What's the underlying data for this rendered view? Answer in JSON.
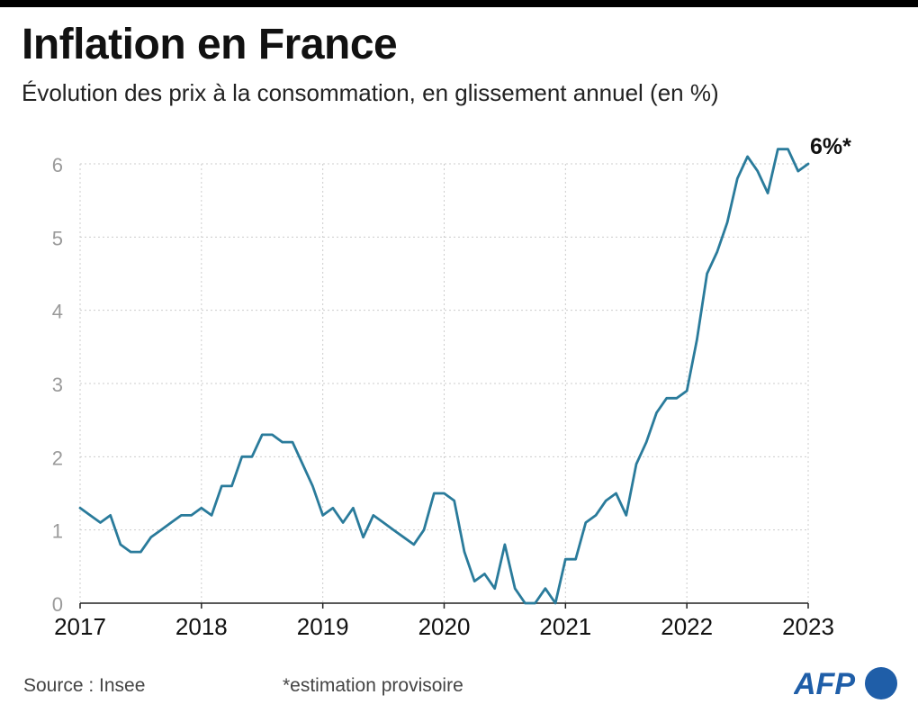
{
  "header": {
    "title": "Inflation en France",
    "subtitle": "Évolution des prix à la consommation, en glissement annuel (en %)"
  },
  "footer": {
    "source": "Source : Insee",
    "note": "*estimation provisoire",
    "logo_text": "AFP"
  },
  "colors": {
    "line": "#2a7b9b",
    "grid": "#cccccc",
    "y_tick_text": "#9a9a9a",
    "x_tick_text": "#111111",
    "logo_blue": "#1f5ea8"
  },
  "chart_data": {
    "type": "line",
    "title": "Inflation en France",
    "subtitle": "Évolution des prix à la consommation, en glissement annuel (en %)",
    "xlabel": "",
    "ylabel": "",
    "ylim": [
      0,
      6
    ],
    "grid": true,
    "y_ticks": [
      "0",
      "1",
      "2",
      "3",
      "4",
      "5",
      "6"
    ],
    "x_ticks": [
      "2017",
      "2018",
      "2019",
      "2020",
      "2021",
      "2022",
      "2023"
    ],
    "start": "2017-01",
    "frequency": "monthly",
    "series": [
      {
        "values": [
          1.3,
          1.2,
          1.1,
          1.2,
          0.8,
          0.7,
          0.7,
          0.9,
          1.0,
          1.1,
          1.2,
          1.2,
          1.3,
          1.2,
          1.6,
          1.6,
          2.0,
          2.0,
          2.3,
          2.3,
          2.2,
          2.2,
          1.9,
          1.6,
          1.2,
          1.3,
          1.1,
          1.3,
          0.9,
          1.2,
          1.1,
          1.0,
          0.9,
          0.8,
          1.0,
          1.5,
          1.5,
          1.4,
          0.7,
          0.3,
          0.4,
          0.2,
          0.8,
          0.2,
          0.0,
          0.0,
          0.2,
          0.0,
          0.6,
          0.6,
          1.1,
          1.2,
          1.4,
          1.5,
          1.2,
          1.9,
          2.2,
          2.6,
          2.8,
          2.8,
          2.9,
          3.6,
          4.5,
          4.8,
          5.2,
          5.8,
          6.1,
          5.9,
          5.6,
          6.2,
          6.2,
          5.9,
          6.0
        ]
      }
    ],
    "annotations": [
      {
        "text": "6%*",
        "x": "2023-01",
        "y": 6.0
      }
    ]
  }
}
